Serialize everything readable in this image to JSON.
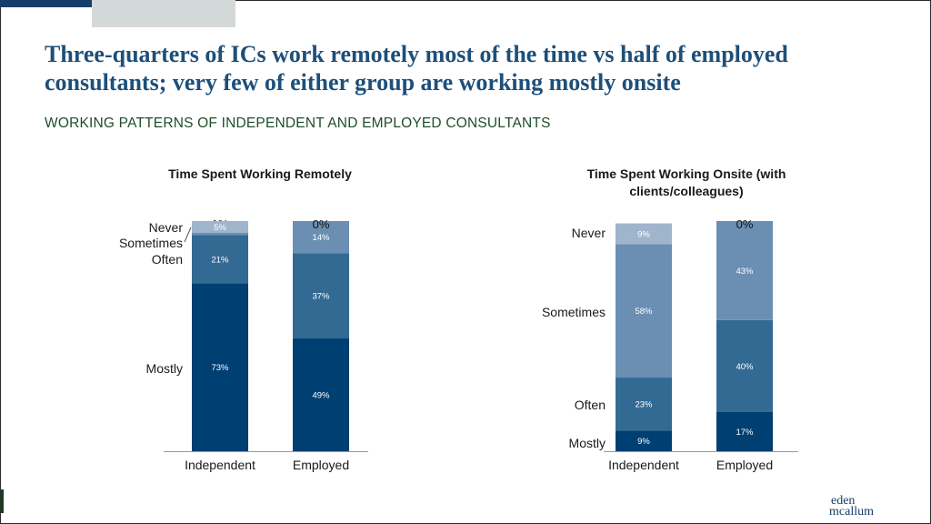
{
  "slide": {
    "title": "Three-quarters of ICs work remotely most of the time vs half of employed consultants; very few of either group are working mostly onsite",
    "subtitle": "WORKING PATTERNS OF INDEPENDENT AND EMPLOYED CONSULTANTS",
    "logo_line1": "eden",
    "logo_line2": "mcallum"
  },
  "colors": {
    "mostly": "#003f72",
    "often": "#336a94",
    "sometimes": "#6a8fb3",
    "never": "#9fb5cb",
    "title": "#1d4f7a",
    "subtitle": "#1f4d2b"
  },
  "chart_data": [
    {
      "type": "bar",
      "stacked": true,
      "title": "Time Spent Working Remotely",
      "categories": [
        "Independent",
        "Employed"
      ],
      "series": [
        {
          "name": "Mostly",
          "values": [
            73,
            49
          ]
        },
        {
          "name": "Often",
          "values": [
            21,
            37
          ]
        },
        {
          "name": "Sometimes",
          "values": [
            1,
            14
          ]
        },
        {
          "name": "Never",
          "values": [
            5,
            0
          ]
        }
      ],
      "value_labels": {
        "Mostly": [
          "73%",
          "49%"
        ],
        "Often": [
          "21%",
          "37%"
        ],
        "Sometimes": [
          "1%",
          "14%"
        ],
        "Never": [
          "5%",
          "0%"
        ]
      },
      "ylim": [
        0,
        100
      ]
    },
    {
      "type": "bar",
      "stacked": true,
      "title": "Time Spent Working Onsite (with clients/colleagues)",
      "categories": [
        "Independent",
        "Employed"
      ],
      "series": [
        {
          "name": "Mostly",
          "values": [
            9,
            17
          ]
        },
        {
          "name": "Often",
          "values": [
            23,
            40
          ]
        },
        {
          "name": "Sometimes",
          "values": [
            58,
            43
          ]
        },
        {
          "name": "Never",
          "values": [
            9,
            0
          ]
        }
      ],
      "value_labels": {
        "Mostly": [
          "9%",
          "17%"
        ],
        "Often": [
          "23%",
          "40%"
        ],
        "Sometimes": [
          "58%",
          "43%"
        ],
        "Never": [
          "9%",
          "0%"
        ]
      },
      "ylim": [
        0,
        100
      ]
    }
  ]
}
